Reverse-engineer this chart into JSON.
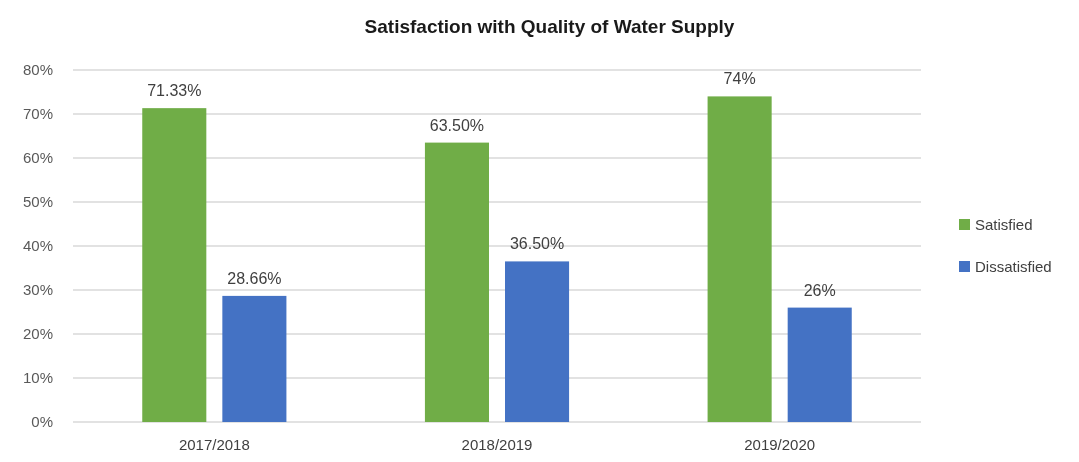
{
  "chart_data": {
    "type": "bar",
    "title": "Satisfaction with Quality of Water Supply",
    "categories": [
      "2017/2018",
      "2018/2019",
      "2019/2020"
    ],
    "series": [
      {
        "name": "Satisfied",
        "color": "#70ad47",
        "values": [
          71.33,
          63.5,
          74
        ],
        "value_labels": [
          "71.33%",
          "63.50%",
          "74%"
        ]
      },
      {
        "name": "Dissatisfied",
        "color": "#4472c4",
        "values": [
          28.66,
          36.5,
          26
        ],
        "value_labels": [
          "28.66%",
          "36.50%",
          "26%"
        ]
      }
    ],
    "ylim": [
      0,
      80
    ],
    "yticks": [
      {
        "value": 0,
        "label": "0%"
      },
      {
        "value": 10,
        "label": "10%"
      },
      {
        "value": 20,
        "label": "20%"
      },
      {
        "value": 30,
        "label": "30%"
      },
      {
        "value": 40,
        "label": "40%"
      },
      {
        "value": 50,
        "label": "50%"
      },
      {
        "value": 60,
        "label": "60%"
      },
      {
        "value": 70,
        "label": "70%"
      },
      {
        "value": 80,
        "label": "80%"
      }
    ],
    "grid": "y",
    "legend": "right"
  }
}
